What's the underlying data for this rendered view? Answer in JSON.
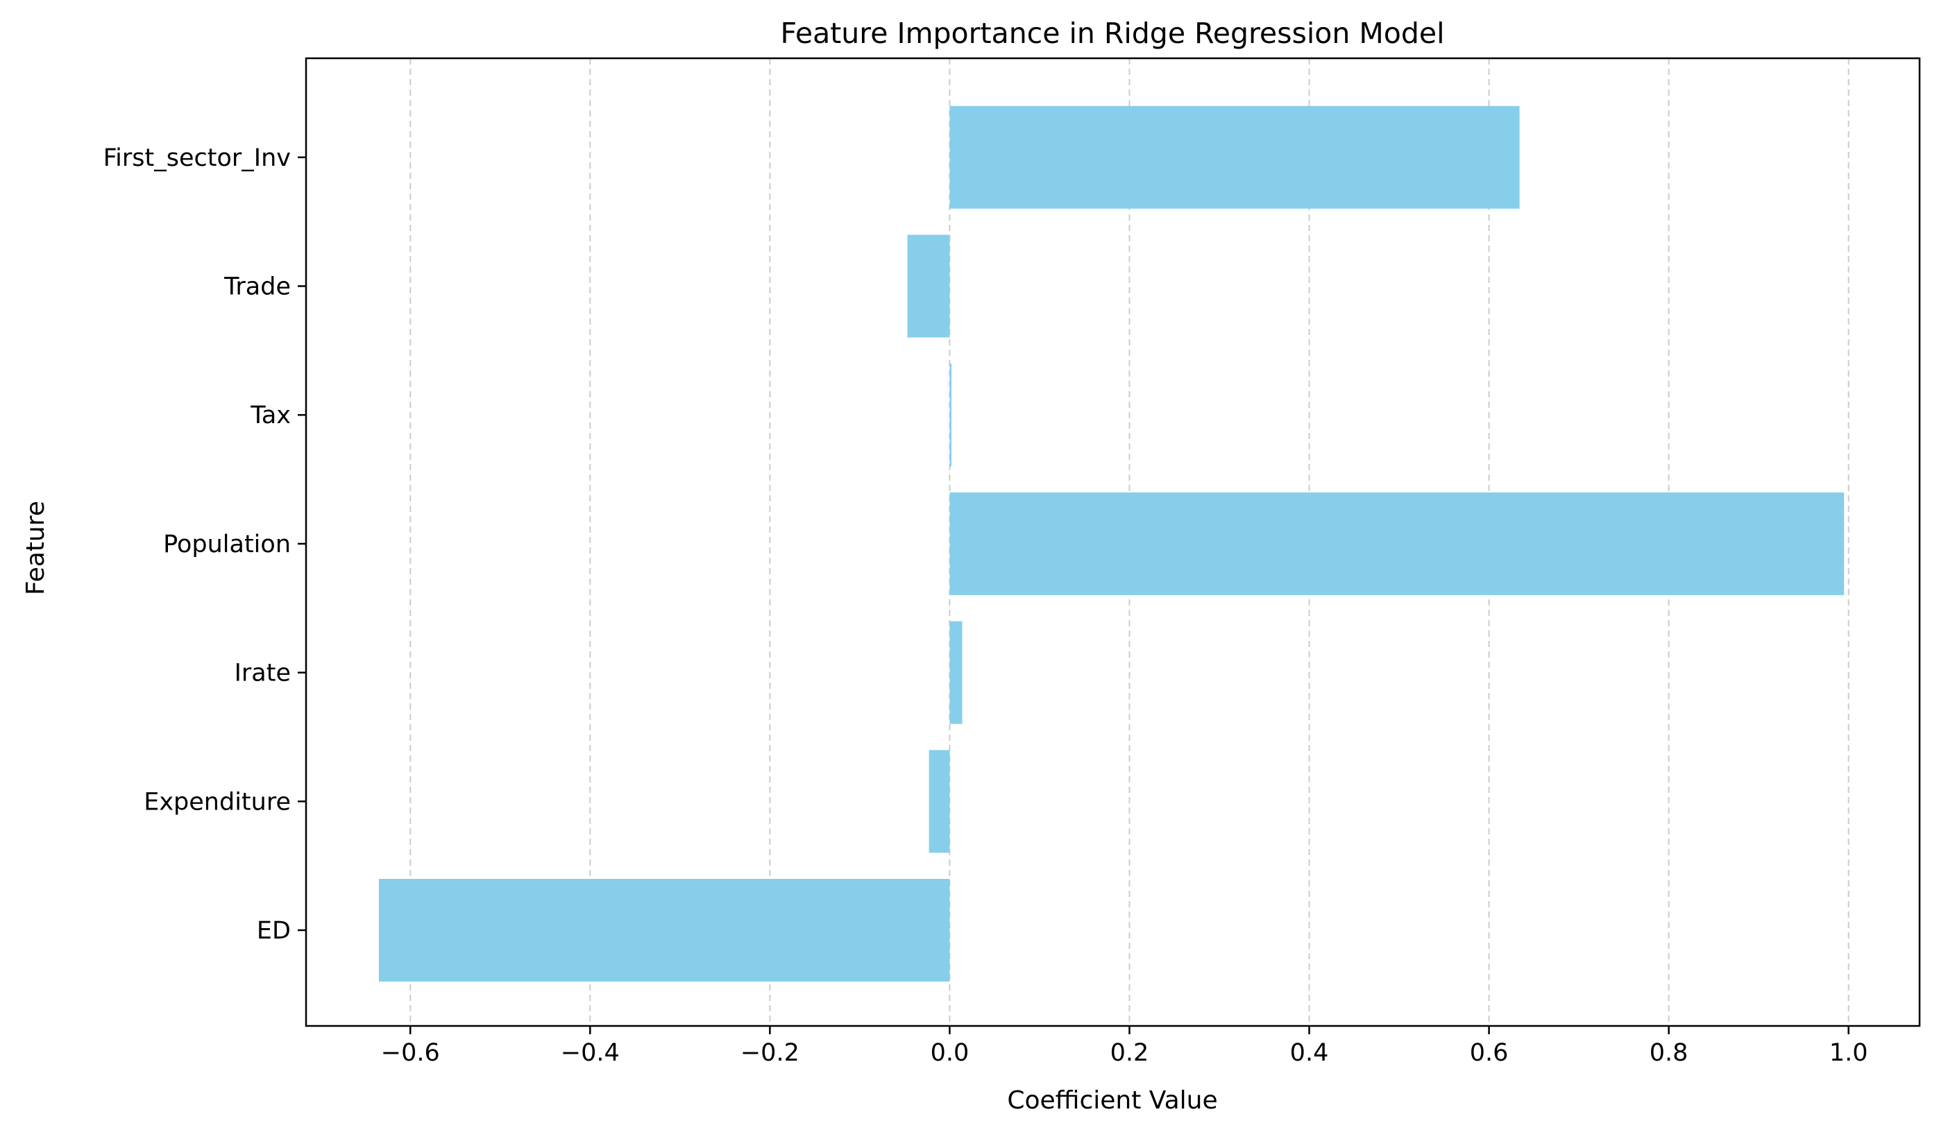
{
  "chart_data": {
    "type": "bar",
    "orientation": "horizontal",
    "title": "Feature Importance in Ridge Regression Model",
    "xlabel": "Coefficient Value",
    "ylabel": "Feature",
    "categories": [
      "ED",
      "Expenditure",
      "Irate",
      "Population",
      "Tax",
      "Trade",
      "First_sector_Inv"
    ],
    "values": [
      -0.635,
      -0.023,
      0.014,
      0.995,
      0.002,
      -0.047,
      0.634
    ],
    "xlim": [
      -0.716,
      1.079
    ],
    "xticks": [
      -0.6,
      -0.4,
      -0.2,
      0.0,
      0.2,
      0.4,
      0.6,
      0.8,
      1.0
    ],
    "xtick_labels": [
      "−0.6",
      "−0.4",
      "−0.2",
      "0.0",
      "0.2",
      "0.4",
      "0.6",
      "0.8",
      "1.0"
    ],
    "grid": {
      "x": true,
      "y": false,
      "style": "dashed"
    },
    "legend": "none",
    "colors": {
      "bar": "#87ceeb",
      "grid": "#cccccc",
      "axis": "#000000"
    }
  }
}
